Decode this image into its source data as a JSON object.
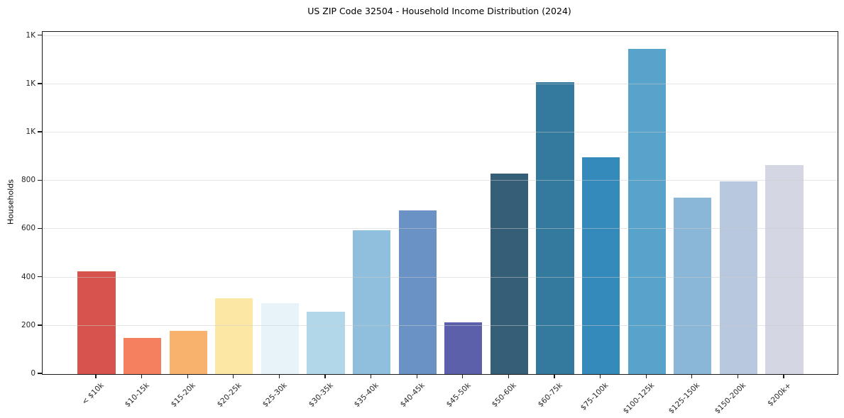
{
  "chart_data": {
    "type": "bar",
    "title": "US ZIP Code 32504 - Household Income Distribution (2024)",
    "xlabel": "",
    "ylabel": "Households",
    "categories": [
      "< $10k",
      "$10-15k",
      "$15-20k",
      "$20-25k",
      "$25-30k",
      "$30-35k",
      "$35-40k",
      "$40-45k",
      "$45-50k",
      "$50-60k",
      "$60-75k",
      "$75-100k",
      "$100-125k",
      "$125-150k",
      "$150-200k",
      "$200k+"
    ],
    "values": [
      425,
      150,
      180,
      315,
      293,
      259,
      597,
      679,
      214,
      831,
      1210,
      898,
      1348,
      731,
      797,
      866
    ],
    "bar_colors": [
      "#d6534e",
      "#f4805f",
      "#f9b26d",
      "#fce8a4",
      "#e7f3f8",
      "#b1d7e9",
      "#90bedd",
      "#6b92c4",
      "#5c60ab",
      "#355f77",
      "#34799e",
      "#358abc",
      "#58a3cb",
      "#8ab7d8",
      "#b7c8df",
      "#d4d6e3"
    ],
    "ylim": [
      0,
      1417
    ],
    "yticks": {
      "values": [
        0,
        200,
        400,
        600,
        800,
        1000,
        1200,
        1400
      ],
      "labels": [
        "0",
        "200",
        "400",
        "600",
        "800",
        "1K",
        "1K",
        "1K"
      ]
    },
    "grid": "horizontal",
    "legend": false,
    "axis_color": "#1a1a1a",
    "grid_color": "#cbcbcb",
    "tick_label_color": "#262626",
    "background_color": "#ffffff"
  }
}
